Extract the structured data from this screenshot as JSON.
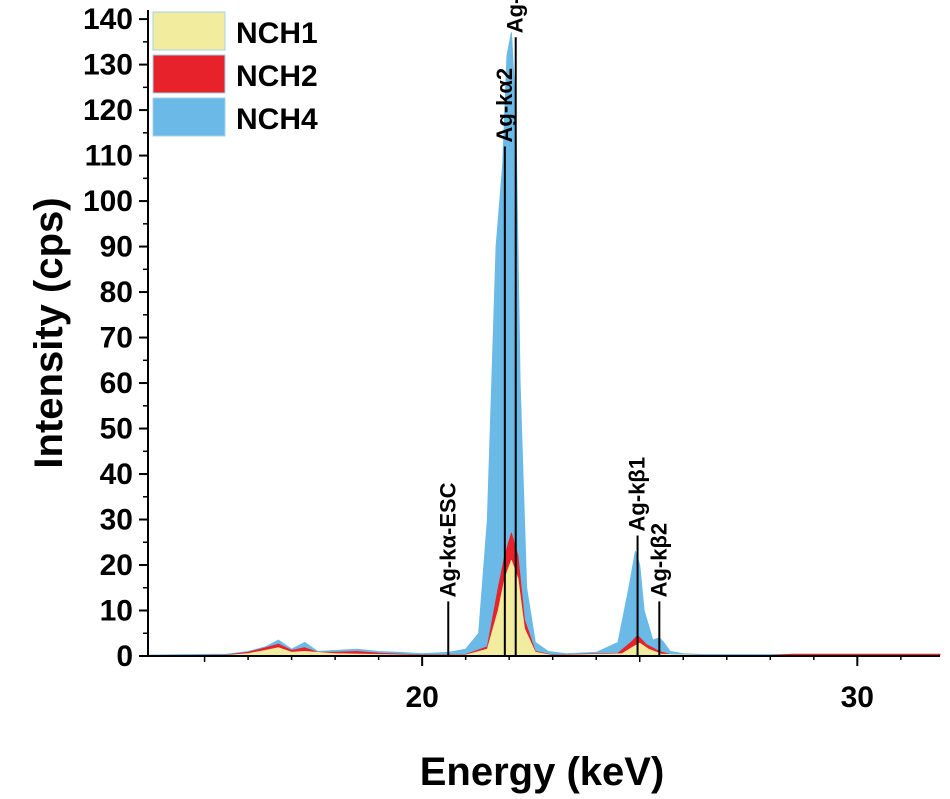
{
  "chart_data": {
    "type": "area",
    "title": "",
    "xlabel": "Energy (keV)",
    "ylabel": "Intensity (cps)",
    "xlim": [
      13.7,
      31.9
    ],
    "ylim": [
      0,
      142
    ],
    "xticks": [
      20,
      30
    ],
    "yticks": [
      0,
      10,
      20,
      30,
      40,
      50,
      60,
      70,
      80,
      90,
      100,
      110,
      120,
      130,
      140
    ],
    "legend_position": "top-left",
    "colors": {
      "NCH1": "#f2ec9e",
      "NCH2": "#e8222a",
      "NCH4": "#6ab9e6"
    },
    "series": [
      {
        "name": "NCH4",
        "x": [
          13.7,
          14.5,
          15.5,
          16.0,
          16.4,
          16.7,
          17.0,
          17.3,
          17.6,
          18.0,
          18.5,
          19.0,
          19.5,
          20.0,
          20.6,
          21.0,
          21.3,
          21.5,
          21.7,
          21.85,
          21.95,
          22.05,
          22.15,
          22.25,
          22.4,
          22.6,
          22.9,
          23.3,
          24.0,
          24.5,
          24.75,
          24.9,
          25.0,
          25.1,
          25.3,
          25.45,
          25.55,
          25.7,
          26.0,
          26.5,
          27.5,
          28.5,
          30.0,
          31.9
        ],
        "values": [
          0.2,
          0.3,
          0.4,
          1.0,
          2.0,
          3.5,
          1.5,
          3.0,
          1.0,
          1.2,
          1.5,
          1.0,
          0.8,
          0.5,
          0.8,
          1.5,
          5.0,
          30.0,
          90.0,
          108.0,
          132.0,
          137.0,
          120.0,
          60.0,
          15.0,
          3.0,
          1.0,
          0.5,
          0.8,
          3.0,
          15.0,
          23.0,
          20.0,
          10.0,
          3.5,
          4.0,
          3.0,
          1.0,
          0.5,
          0.3,
          0.3,
          0.3,
          0.3,
          0.3
        ]
      },
      {
        "name": "NCH2",
        "x": [
          13.7,
          15.5,
          16.0,
          16.4,
          16.7,
          17.0,
          17.3,
          17.6,
          18.0,
          18.5,
          19.0,
          20.0,
          21.0,
          21.5,
          21.75,
          21.9,
          22.05,
          22.2,
          22.35,
          22.6,
          23.0,
          24.5,
          24.8,
          24.95,
          25.15,
          25.45,
          25.7,
          26.5,
          28.0,
          28.5,
          31.9
        ],
        "values": [
          0,
          0.2,
          0.8,
          1.8,
          2.6,
          1.2,
          1.8,
          0.8,
          0.8,
          1.0,
          0.6,
          0.2,
          0.3,
          2.0,
          15.0,
          22.0,
          27.0,
          22.0,
          8.0,
          1.0,
          0.2,
          0.6,
          3.0,
          4.5,
          2.5,
          1.0,
          0.3,
          0.1,
          0.1,
          0.4,
          0.4
        ]
      },
      {
        "name": "NCH1",
        "x": [
          13.7,
          15.5,
          16.0,
          16.4,
          16.7,
          17.0,
          17.3,
          18.0,
          19.0,
          20.0,
          21.0,
          21.5,
          21.75,
          21.9,
          22.05,
          22.2,
          22.35,
          22.6,
          23.0,
          24.6,
          24.85,
          25.0,
          25.2,
          25.5,
          26.5,
          31.9
        ],
        "values": [
          0,
          0.1,
          0.5,
          1.2,
          1.8,
          0.8,
          1.0,
          0.5,
          0.3,
          0.1,
          0.2,
          1.5,
          10.0,
          17.0,
          21.0,
          17.0,
          6.0,
          0.8,
          0.1,
          0.5,
          2.0,
          2.8,
          1.5,
          0.4,
          0.1,
          0.1
        ]
      }
    ],
    "annotations": [
      {
        "label": "Ag-kα-ESC",
        "x": 20.6,
        "y_bottom": 0,
        "y_top": 12.0
      },
      {
        "label": "Ag-kα2",
        "x": 21.9,
        "y_bottom": 0,
        "y_top": 112.0
      },
      {
        "label": "Ag-kα",
        "x": 22.15,
        "y_bottom": 0,
        "y_top": 136.0
      },
      {
        "label": "Ag-kβ1",
        "x": 24.95,
        "y_bottom": 0,
        "y_top": 26.5
      },
      {
        "label": "Ag-kβ2",
        "x": 25.45,
        "y_bottom": 0,
        "y_top": 12.0
      }
    ],
    "legend": [
      {
        "name": "NCH1",
        "color": "#f2ec9e"
      },
      {
        "name": "NCH2",
        "color": "#e8222a"
      },
      {
        "name": "NCH4",
        "color": "#6ab9e6"
      }
    ]
  }
}
